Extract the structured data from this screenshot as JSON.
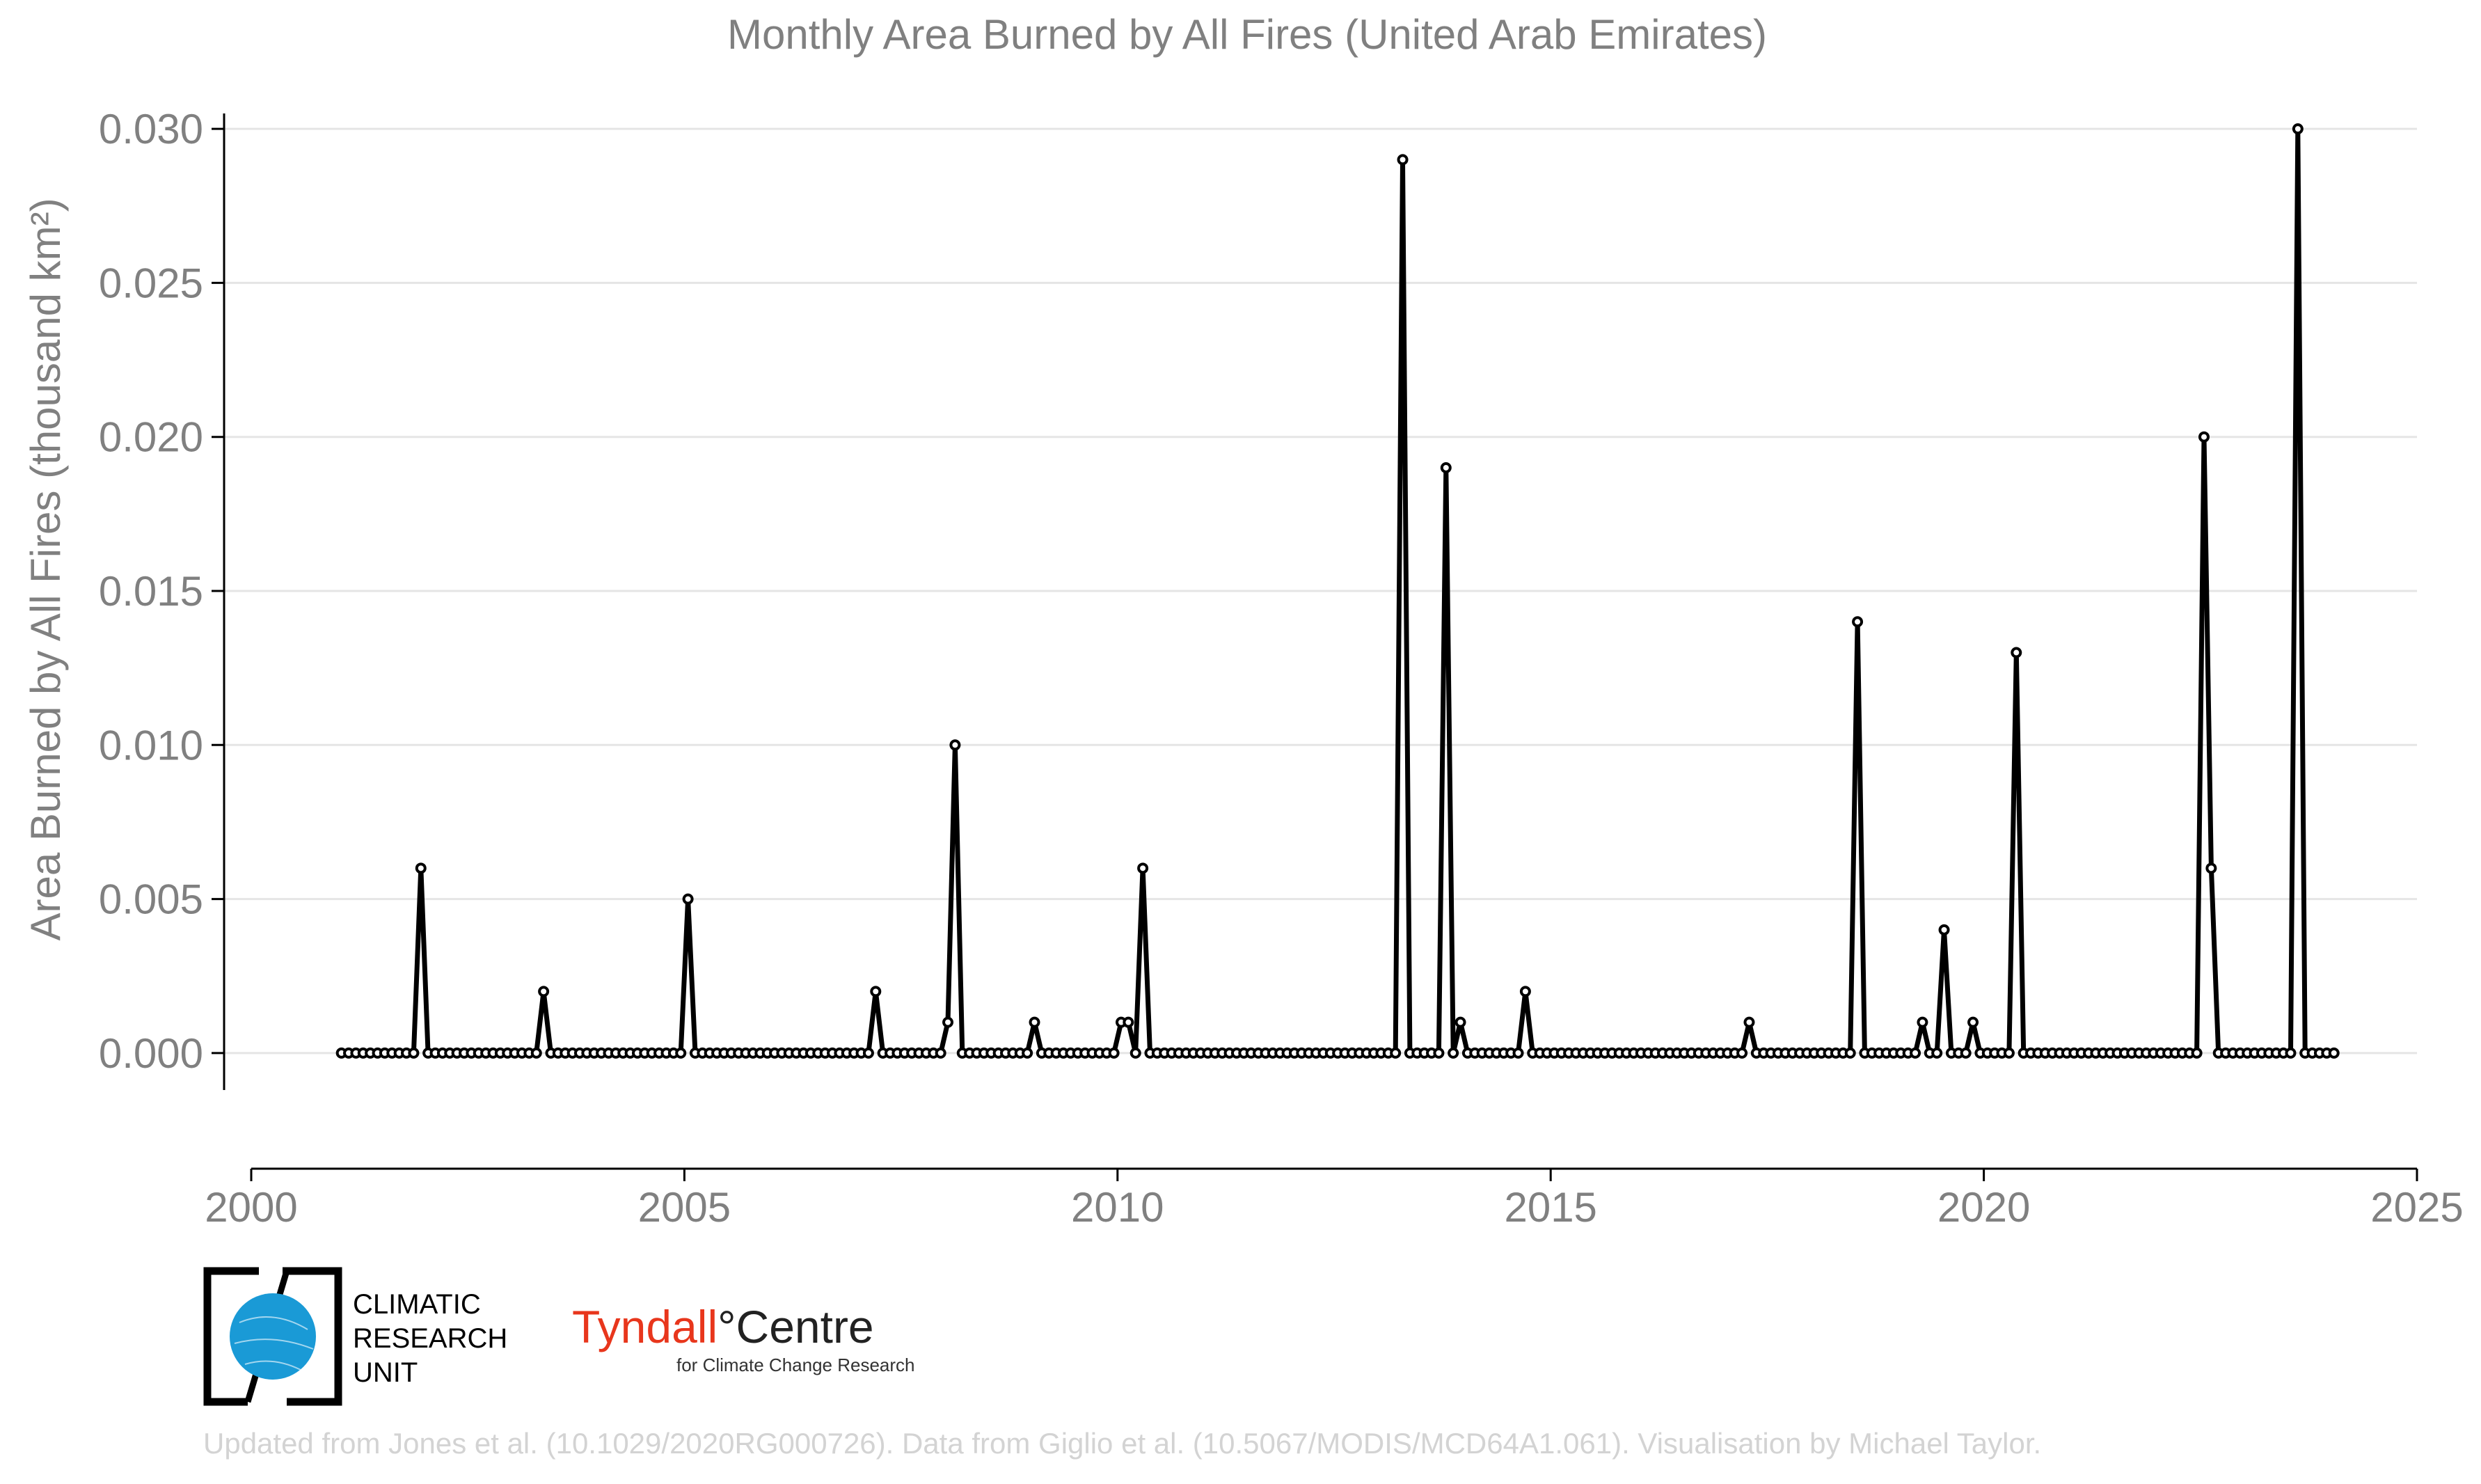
{
  "chart_data": {
    "type": "line",
    "title": "Monthly Area Burned by All Fires (United Arab Emirates)",
    "ylabel": "Area Burned by All Fires (thousand km²)",
    "xlim": [
      2000,
      2025
    ],
    "ylim": [
      -0.0012,
      0.0305
    ],
    "x_ticks": [
      "2000",
      "2005",
      "2010",
      "2015",
      "2020",
      "2025"
    ],
    "y_ticks": [
      "0.000",
      "0.005",
      "0.010",
      "0.015",
      "0.020",
      "0.025",
      "0.030"
    ],
    "grid": "horizontal",
    "start": "2001-01",
    "series": [
      {
        "values": [
          0,
          0,
          0,
          0,
          0,
          0,
          0,
          0,
          0,
          0,
          0,
          0.006,
          0,
          0,
          0,
          0,
          0,
          0,
          0,
          0,
          0,
          0,
          0,
          0,
          0,
          0,
          0,
          0,
          0.002,
          0,
          0,
          0,
          0,
          0,
          0,
          0,
          0,
          0,
          0,
          0,
          0,
          0,
          0,
          0,
          0,
          0,
          0,
          0,
          0.005,
          0,
          0,
          0,
          0,
          0,
          0,
          0,
          0,
          0,
          0,
          0,
          0,
          0,
          0,
          0,
          0,
          0,
          0,
          0,
          0,
          0,
          0,
          0,
          0,
          0,
          0.002,
          0,
          0,
          0,
          0,
          0,
          0,
          0,
          0,
          0,
          0.001,
          0.01,
          0,
          0,
          0,
          0,
          0,
          0,
          0,
          0,
          0,
          0,
          0.001,
          0,
          0,
          0,
          0,
          0,
          0,
          0,
          0,
          0,
          0,
          0,
          0.001,
          0.001,
          0,
          0.006,
          0,
          0,
          0,
          0,
          0,
          0,
          0,
          0,
          0,
          0,
          0,
          0,
          0,
          0,
          0,
          0,
          0,
          0,
          0,
          0,
          0,
          0,
          0,
          0,
          0,
          0,
          0,
          0,
          0,
          0,
          0,
          0,
          0,
          0,
          0,
          0.029,
          0,
          0,
          0,
          0,
          0,
          0.019,
          0,
          0.001,
          0,
          0,
          0,
          0,
          0,
          0,
          0,
          0,
          0.002,
          0,
          0,
          0,
          0,
          0,
          0,
          0,
          0,
          0,
          0,
          0,
          0,
          0,
          0,
          0,
          0,
          0,
          0,
          0,
          0,
          0,
          0,
          0,
          0,
          0,
          0,
          0,
          0,
          0,
          0,
          0.001,
          0,
          0,
          0,
          0,
          0,
          0,
          0,
          0,
          0,
          0,
          0,
          0,
          0,
          0,
          0.014,
          0,
          0,
          0,
          0,
          0,
          0,
          0,
          0,
          0.001,
          0,
          0,
          0.004,
          0,
          0,
          0,
          0.001,
          0,
          0,
          0,
          0,
          0,
          0.013,
          0,
          0,
          0,
          0,
          0,
          0,
          0,
          0,
          0,
          0,
          0,
          0,
          0,
          0,
          0,
          0,
          0,
          0,
          0,
          0,
          0,
          0,
          0,
          0,
          0,
          0.02,
          0.006,
          0,
          0,
          0,
          0,
          0,
          0,
          0,
          0,
          0,
          0,
          0,
          0.03,
          0,
          0,
          0,
          0,
          0
        ]
      }
    ]
  },
  "footer": {
    "credit": "Updated from Jones et al. (10.1029/2020RG000726). Data from Giglio et al. (10.5067/MODIS/MCD64A1.061). Visualisation by Michael Taylor."
  },
  "logos": {
    "cru_line1": "CLIMATIC",
    "cru_line2": "RESEARCH",
    "cru_line3": "UNIT",
    "tyndall_name": "Tyndall",
    "tyndall_degree": "°",
    "tyndall_centre": "Centre",
    "tyndall_sub": "for Climate Change Research"
  },
  "colors": {
    "line": "#000000",
    "text": "#808080",
    "grid": "#e5e5e5",
    "cru_globe": "#1a9ad6",
    "tyndall": "#e8361c"
  }
}
